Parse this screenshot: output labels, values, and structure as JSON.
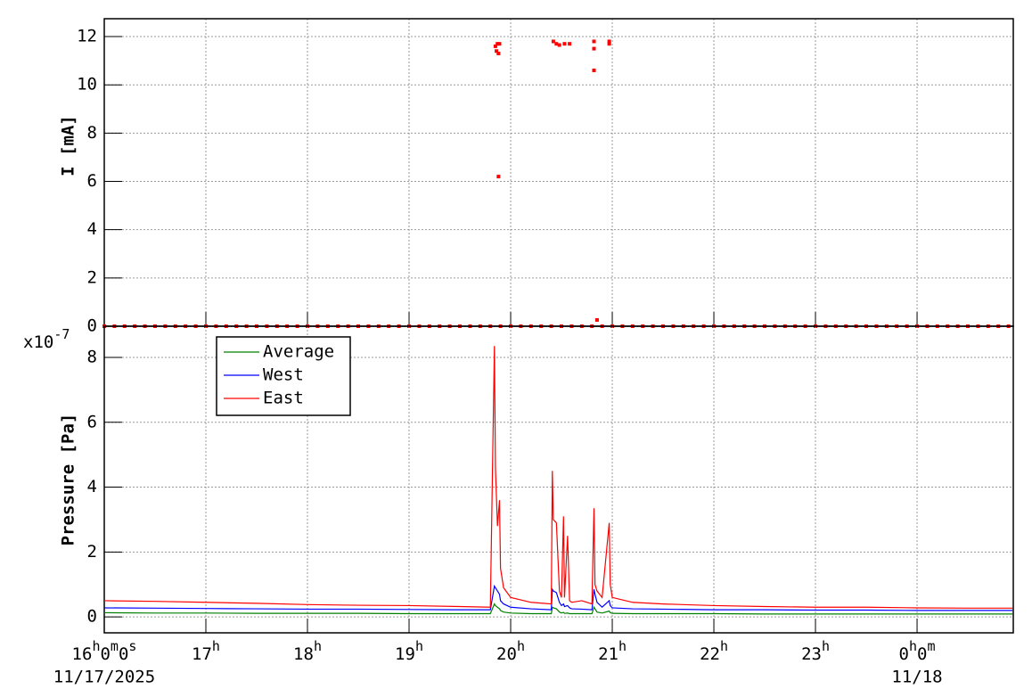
{
  "chart_data": [
    {
      "type": "scatter",
      "ylabel": "I [mA]",
      "color": "#ff0000",
      "x": [
        16,
        16.1,
        16.2,
        16.3,
        16.4,
        16.5,
        16.6,
        16.7,
        16.8,
        16.9,
        17,
        17.1,
        17.2,
        17.3,
        17.4,
        17.5,
        17.6,
        17.7,
        17.8,
        17.9,
        18,
        18.1,
        18.2,
        18.3,
        18.4,
        18.5,
        18.6,
        18.7,
        18.8,
        18.9,
        19,
        19.1,
        19.2,
        19.3,
        19.4,
        19.5,
        19.6,
        19.7,
        19.8,
        19.9,
        20,
        20.1,
        20.2,
        20.3,
        20.4,
        20.5,
        20.6,
        20.7,
        20.8,
        20.9,
        21,
        21.1,
        21.2,
        21.3,
        21.4,
        21.5,
        21.6,
        21.7,
        21.8,
        21.9,
        22,
        22.1,
        22.2,
        22.3,
        22.4,
        22.5,
        22.6,
        22.7,
        22.8,
        22.9,
        23,
        23.1,
        23.2,
        23.3,
        23.4,
        23.5,
        23.6,
        23.7,
        23.8,
        23.9,
        24,
        24.1,
        24.2,
        24.3,
        24.4,
        24.5,
        24.6,
        24.7,
        24.8,
        24.9,
        19.85,
        19.86,
        19.87,
        19.88,
        19.89,
        19.88,
        20.42,
        20.45,
        20.48,
        20.53,
        20.58,
        20.82,
        20.82,
        20.82,
        20.85,
        20.97,
        20.97
      ],
      "values": [
        0,
        0,
        0,
        0,
        0,
        0,
        0,
        0,
        0,
        0,
        0,
        0,
        0,
        0,
        0,
        0,
        0,
        0,
        0,
        0,
        0,
        0,
        0,
        0,
        0,
        0,
        0,
        0,
        0,
        0,
        0,
        0,
        0,
        0,
        0,
        0,
        0,
        0,
        0,
        0,
        0,
        0,
        0,
        0,
        0,
        0,
        0,
        0,
        0,
        0,
        0,
        0,
        0,
        0,
        0,
        0,
        0,
        0,
        0,
        0,
        0,
        0,
        0,
        0,
        0,
        0,
        0,
        0,
        0,
        0,
        0,
        0,
        0,
        0,
        0,
        0,
        0,
        0,
        0,
        0,
        0,
        0,
        0,
        0,
        0,
        0,
        0,
        0,
        0,
        0,
        11.6,
        11.4,
        11.7,
        11.3,
        11.7,
        6.2,
        11.8,
        11.7,
        11.65,
        11.7,
        11.7,
        11.8,
        11.5,
        10.6,
        0.26,
        11.8,
        11.7
      ],
      "xlim": [
        16,
        24.947
      ],
      "ylim": [
        0,
        12.74
      ],
      "xticks": [
        16,
        17,
        18,
        19,
        20,
        21,
        22,
        23,
        24
      ],
      "yticks": [
        0,
        2,
        4,
        6,
        8,
        10,
        12
      ],
      "grid": true
    },
    {
      "type": "line",
      "ylabel": "Pressure [Pa]",
      "y_exponent_label": "x10-7",
      "x": [
        16,
        16.5,
        17,
        17.5,
        18,
        18.5,
        19,
        19.5,
        19.8,
        19.84,
        19.85,
        19.87,
        19.89,
        19.9,
        19.93,
        20.0,
        20.2,
        20.4,
        20.41,
        20.42,
        20.45,
        20.48,
        20.5,
        20.52,
        20.53,
        20.56,
        20.58,
        20.6,
        20.7,
        20.8,
        20.82,
        20.83,
        20.85,
        20.9,
        20.97,
        20.98,
        21.0,
        21.2,
        21.5,
        22,
        22.5,
        23,
        23.5,
        24,
        24.5,
        24.94
      ],
      "series": [
        {
          "name": "Average",
          "color": "#008000",
          "values": [
            0.13,
            0.12,
            0.12,
            0.11,
            0.11,
            0.11,
            0.1,
            0.1,
            0.1,
            0.4,
            0.35,
            0.3,
            0.25,
            0.2,
            0.15,
            0.12,
            0.1,
            0.1,
            0.3,
            0.28,
            0.25,
            0.15,
            0.12,
            0.14,
            0.11,
            0.12,
            0.1,
            0.1,
            0.1,
            0.1,
            0.3,
            0.25,
            0.15,
            0.12,
            0.18,
            0.13,
            0.11,
            0.1,
            0.1,
            0.1,
            0.09,
            0.09,
            0.09,
            0.09,
            0.09,
            0.09
          ]
        },
        {
          "name": "West",
          "color": "#0000ff",
          "values": [
            0.28,
            0.27,
            0.26,
            0.25,
            0.24,
            0.24,
            0.23,
            0.22,
            0.22,
            0.95,
            0.9,
            0.8,
            0.7,
            0.5,
            0.4,
            0.3,
            0.25,
            0.22,
            0.85,
            0.8,
            0.75,
            0.45,
            0.35,
            0.4,
            0.32,
            0.35,
            0.28,
            0.25,
            0.24,
            0.22,
            0.85,
            0.7,
            0.45,
            0.3,
            0.5,
            0.35,
            0.28,
            0.25,
            0.24,
            0.22,
            0.22,
            0.21,
            0.21,
            0.2,
            0.2,
            0.2
          ]
        },
        {
          "name": "East",
          "color": "#ff0000",
          "values": [
            0.5,
            0.48,
            0.45,
            0.42,
            0.38,
            0.36,
            0.35,
            0.32,
            0.3,
            8.35,
            4.6,
            2.8,
            3.6,
            1.5,
            0.9,
            0.6,
            0.45,
            0.4,
            4.5,
            3.0,
            2.9,
            0.8,
            0.6,
            3.1,
            0.6,
            2.5,
            0.5,
            0.45,
            0.5,
            0.4,
            3.35,
            1.0,
            0.8,
            0.6,
            2.9,
            1.0,
            0.6,
            0.45,
            0.4,
            0.35,
            0.32,
            0.3,
            0.3,
            0.28,
            0.27,
            0.27
          ]
        }
      ],
      "xlim": [
        16,
        24.947
      ],
      "ylim": [
        -0.49,
        8.96
      ],
      "xticks": [
        {
          "value": 16,
          "label": "16h0m0s"
        },
        {
          "value": 17,
          "label": "17h"
        },
        {
          "value": 18,
          "label": "18h"
        },
        {
          "value": 19,
          "label": "19h"
        },
        {
          "value": 20,
          "label": "20h"
        },
        {
          "value": 21,
          "label": "21h"
        },
        {
          "value": 22,
          "label": "22h"
        },
        {
          "value": 23,
          "label": "23h"
        },
        {
          "value": 24,
          "label": "0h0m"
        }
      ],
      "date_labels": [
        {
          "value": 16,
          "label": "11/17/2025"
        },
        {
          "value": 24,
          "label": "11/18"
        }
      ],
      "yticks": [
        0,
        2,
        4,
        6,
        8
      ],
      "grid": true,
      "legend": "top-left"
    }
  ]
}
